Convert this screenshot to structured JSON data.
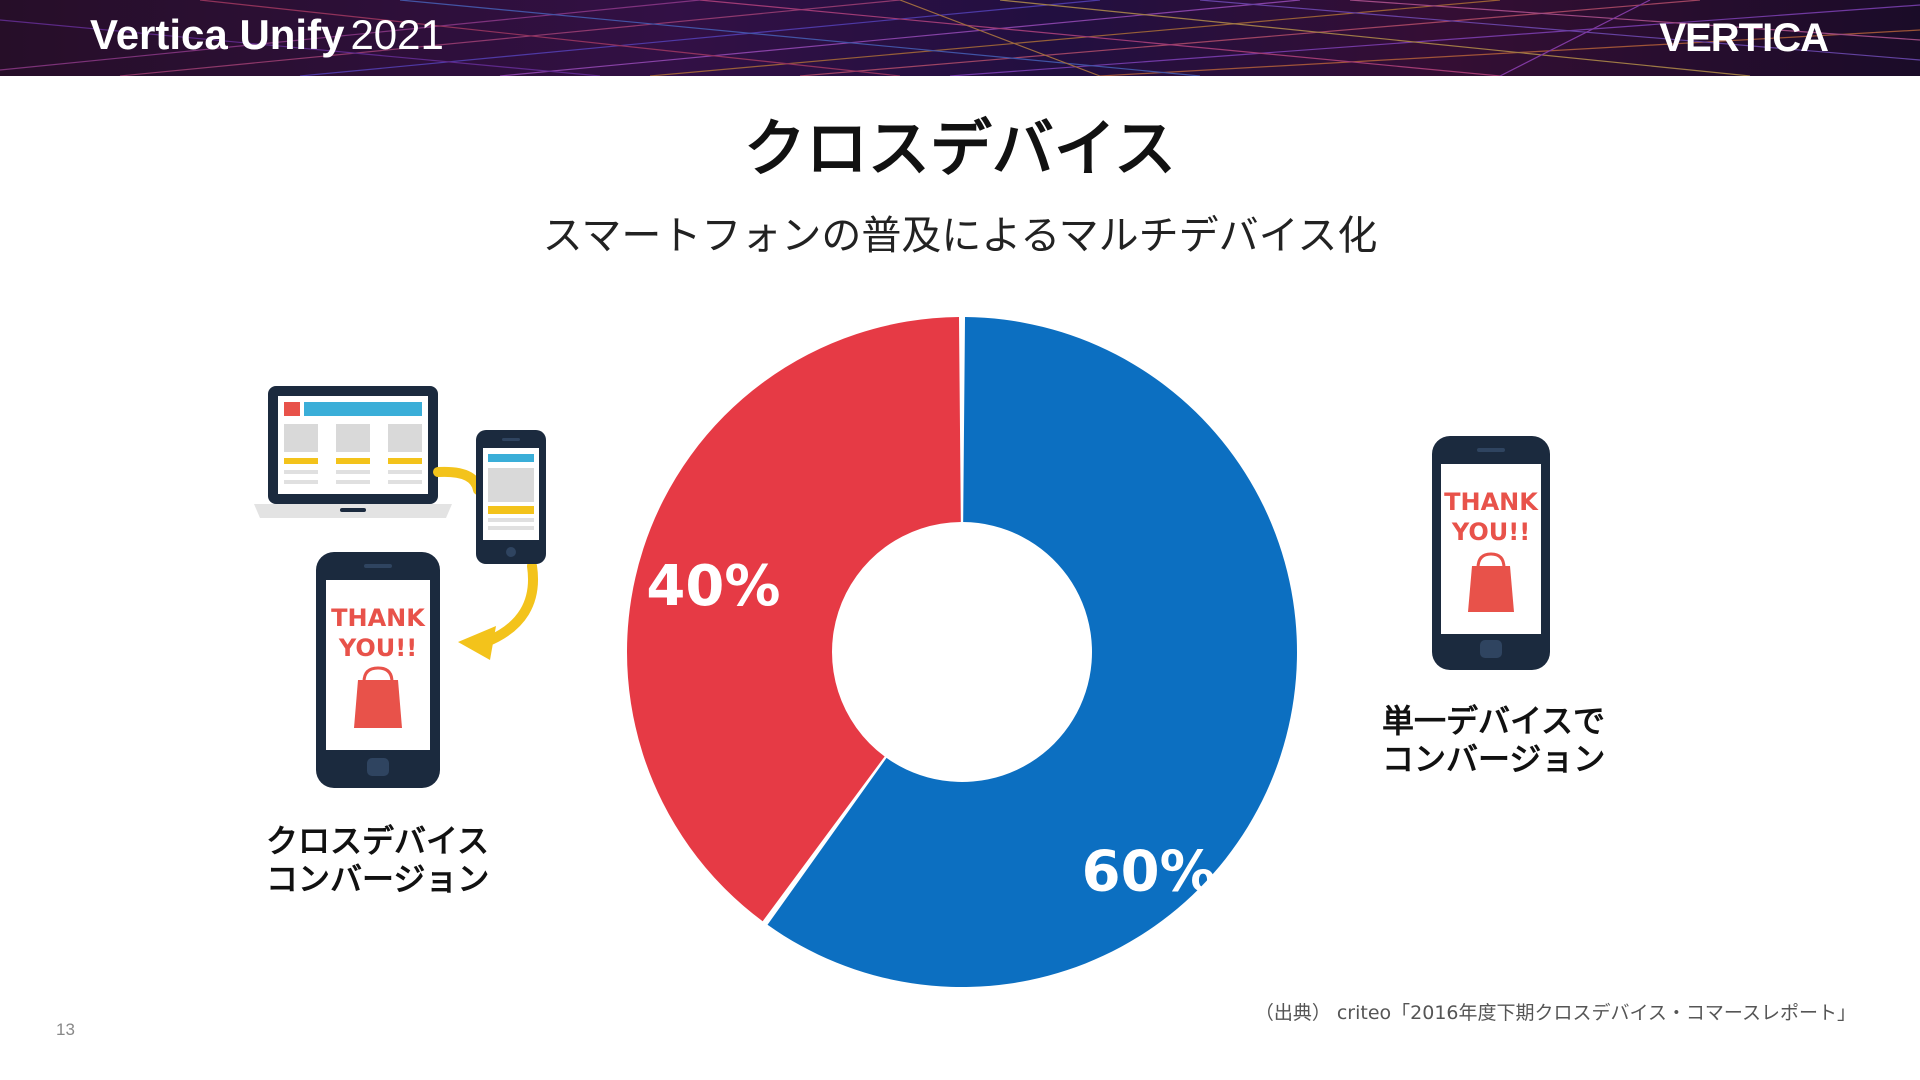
{
  "header": {
    "event_name": "Vertica Unify",
    "event_year": "2021",
    "logo_text": "VERTICA"
  },
  "title": "クロスデバイス",
  "subtitle": "スマートフォンの普及によるマルチデバイス化",
  "chart_data": {
    "type": "pie",
    "style": "donut",
    "segments": [
      {
        "label": "40%",
        "value": 40,
        "color": "#e63a45"
      },
      {
        "label": "60%",
        "value": 60,
        "color": "#0c6fc1"
      }
    ]
  },
  "left_panel": {
    "phone_text_line1": "THANK",
    "phone_text_line2": "YOU!!",
    "caption_line1": "クロスデバイス",
    "caption_line2": "コンバージョン"
  },
  "right_panel": {
    "phone_text_line1": "THANK",
    "phone_text_line2": "YOU!!",
    "caption_line1": "単一デバイスで",
    "caption_line2": "コンバージョン"
  },
  "footer": {
    "source": "（出典） criteo「2016年度下期クロスデバイス・コマースレポート」",
    "page_number": "13"
  },
  "colors": {
    "cross_device": "#e63a45",
    "single_device": "#0c6fc1",
    "device_dark": "#1b2a3e",
    "accent_yellow": "#f3c31b",
    "accent_red": "#e8524a"
  }
}
